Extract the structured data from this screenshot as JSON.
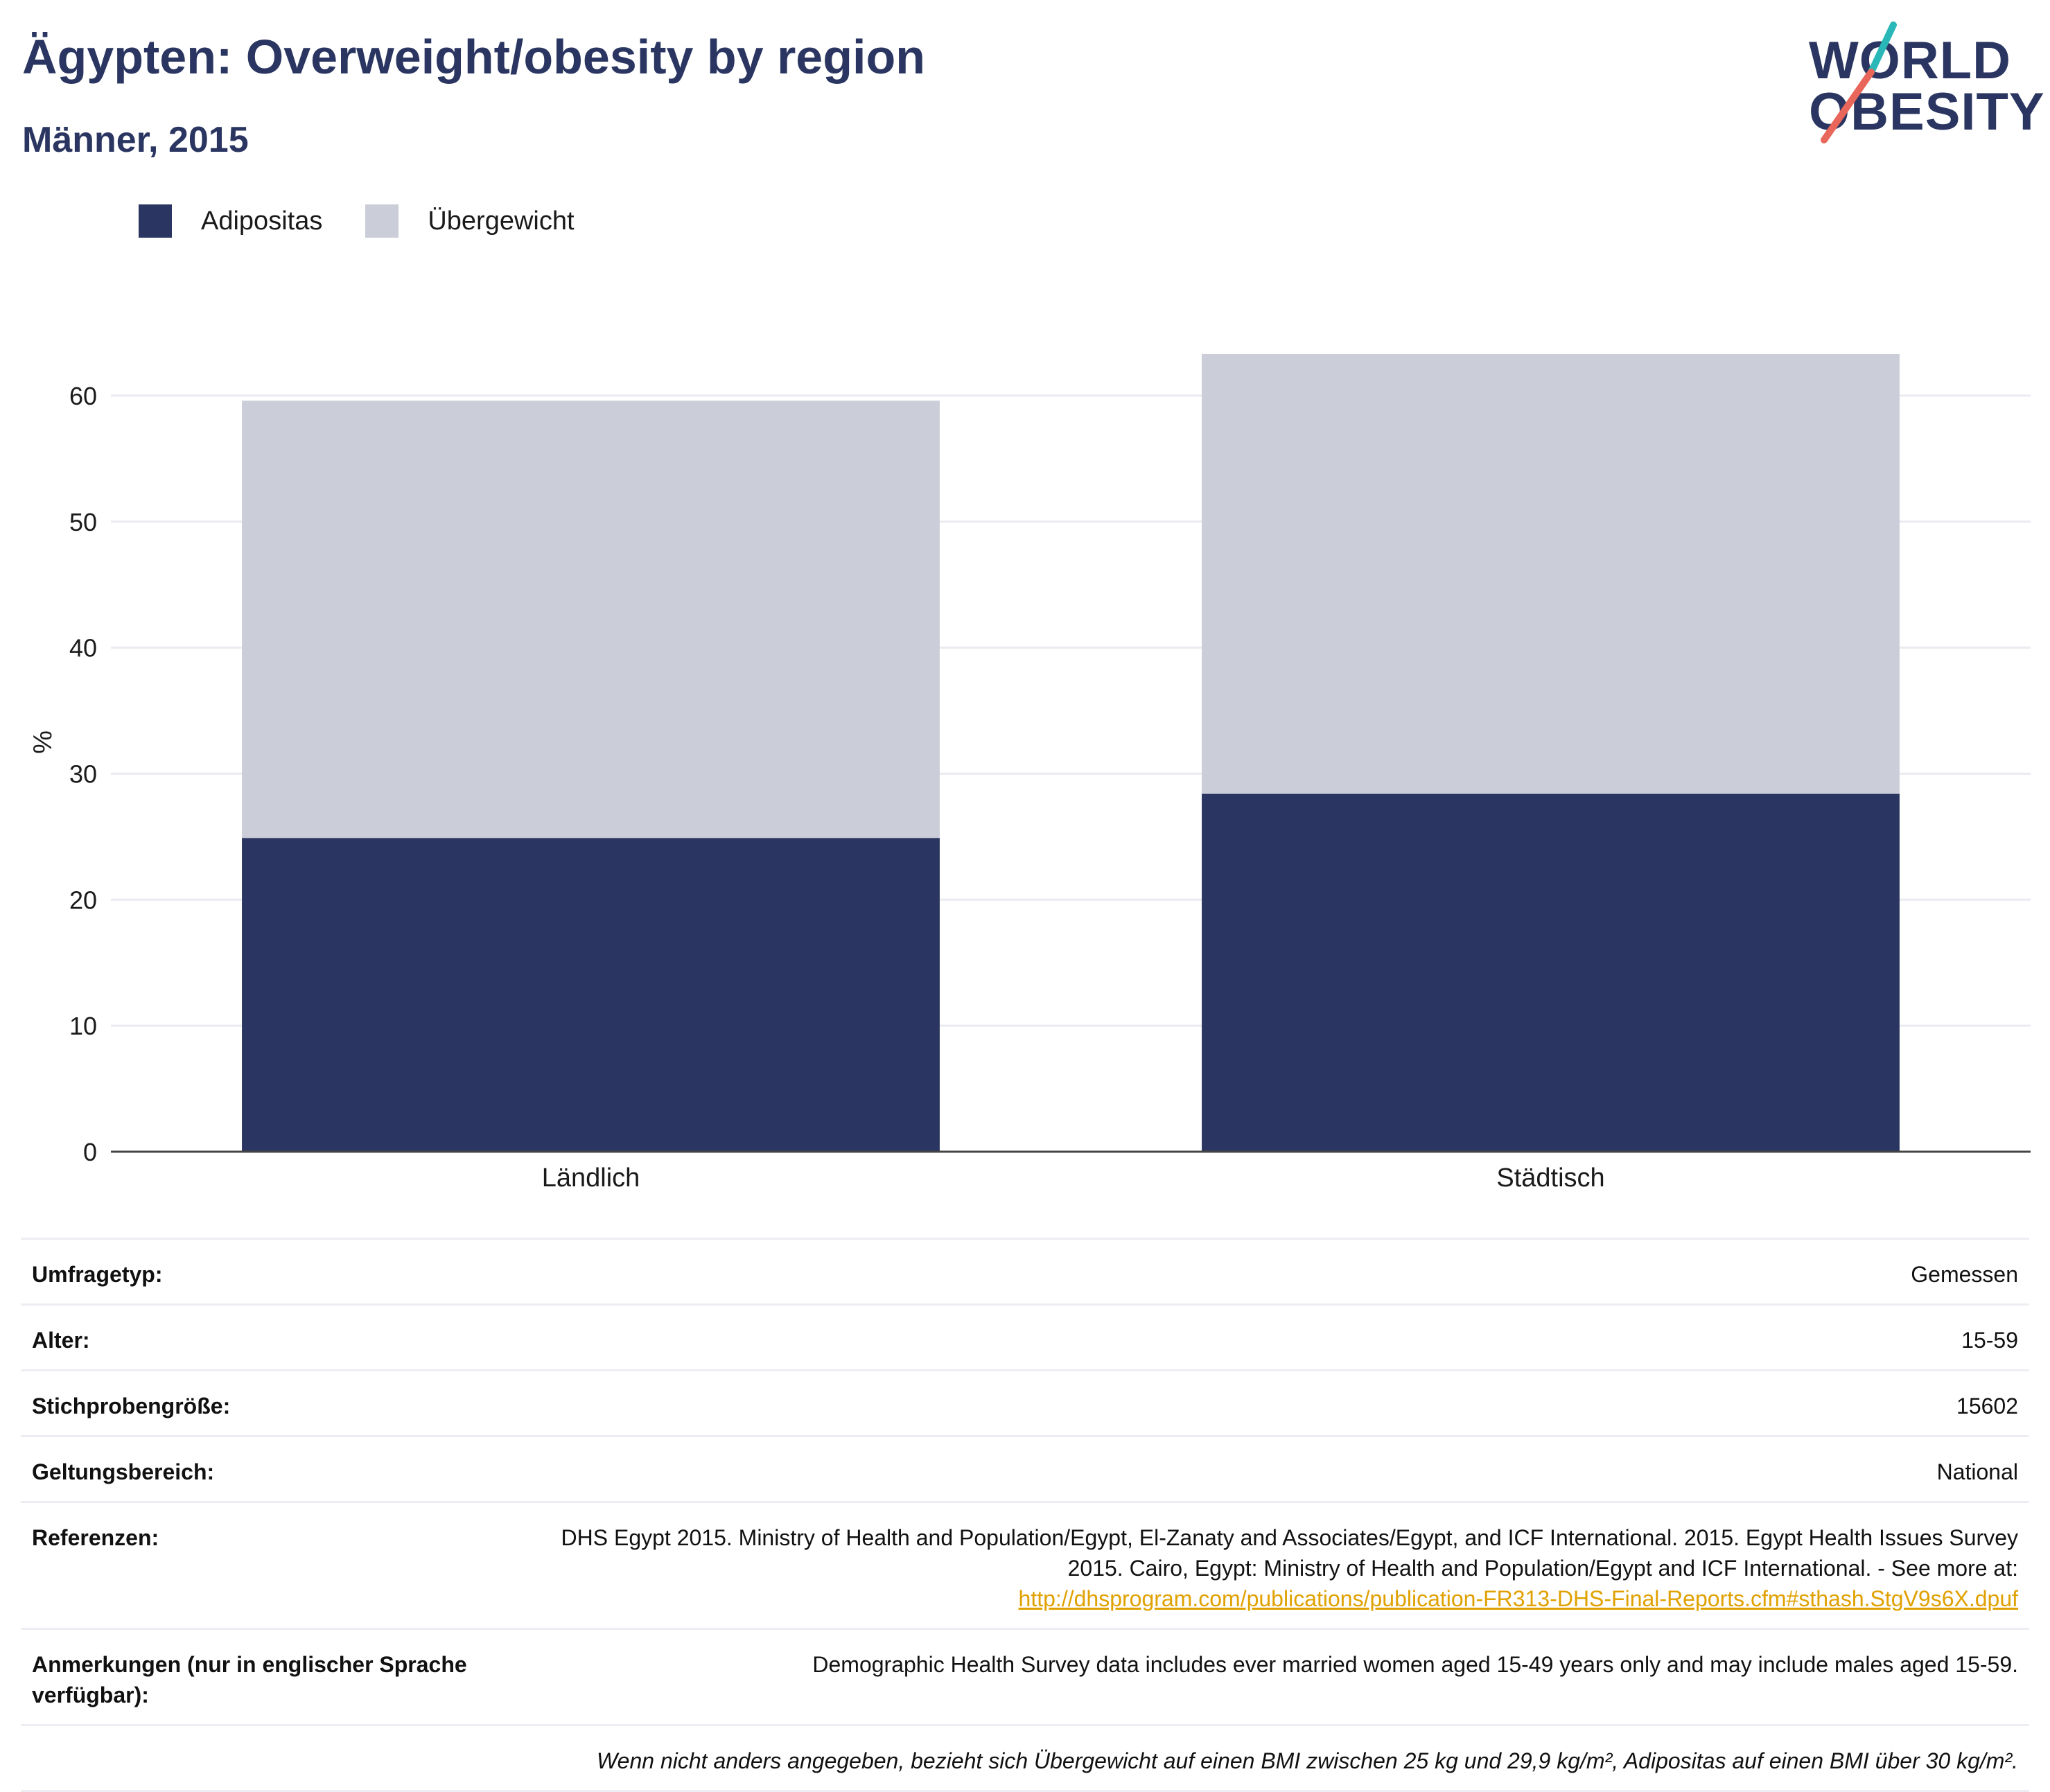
{
  "header": {
    "title": "Ägypten: Overweight/obesity by region",
    "subtitle": "Männer, 2015"
  },
  "logo": {
    "line1": "WORLD",
    "line2": "OBESITY",
    "colors": {
      "text": "#2a3661",
      "slash_top": "#2ab7b7",
      "slash_bottom": "#e8675a"
    }
  },
  "legend": {
    "items": [
      {
        "label": "Adipositas",
        "color": "#2a3661"
      },
      {
        "label": "Übergewicht",
        "color": "#cbcdd8"
      }
    ]
  },
  "chart_data": {
    "type": "bar",
    "stacked": true,
    "categories": [
      "Ländlich",
      "Städtisch"
    ],
    "series": [
      {
        "name": "Adipositas",
        "values": [
          24.9,
          28.4
        ],
        "color": "#2a3661"
      },
      {
        "name": "Übergewicht",
        "values": [
          34.7,
          34.9
        ],
        "color": "#cbcdd8"
      }
    ],
    "ylabel": "%",
    "ylim": [
      0,
      65
    ],
    "yticks": [
      0,
      10,
      20,
      30,
      40,
      50,
      60
    ],
    "grid": true,
    "legend_position": "top-left"
  },
  "info": {
    "rows": [
      {
        "key": "Umfragetyp:",
        "value": "Gemessen"
      },
      {
        "key": "Alter:",
        "value": "15-59"
      },
      {
        "key": "Stichprobengröße:",
        "value": "15602"
      },
      {
        "key": "Geltungsbereich:",
        "value": "National"
      },
      {
        "key": "Referenzen:",
        "value": "DHS Egypt 2015. Ministry of Health and Population/Egypt, El-Zanaty and Associates/Egypt, and ICF International. 2015. Egypt Health Issues Survey 2015. Cairo, Egypt: Ministry of Health and Population/Egypt and ICF International. - See more at:",
        "link": "http://dhsprogram.com/publications/publication-FR313-DHS-Final-Reports.cfm#sthash.StgV9s6X.dpuf"
      },
      {
        "key": "Anmerkungen (nur in englischer Sprache verfügbar):",
        "value": "Demographic Health Survey data includes ever married women aged 15-49 years only and may include males aged 15-59."
      }
    ],
    "footnote": "Wenn nicht anders angegeben, bezieht sich Übergewicht auf einen BMI zwischen 25 kg und 29,9 kg/m², Adipositas auf einen BMI über 30 kg/m²."
  }
}
